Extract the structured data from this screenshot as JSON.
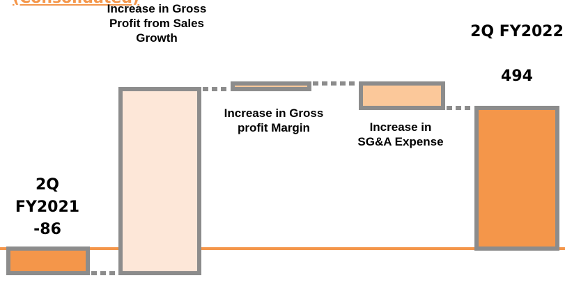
{
  "chart_data": {
    "type": "waterfall",
    "title": "(Consolidated)",
    "categories": [
      "2Q FY2021",
      "Increase in Gross Profit from Sales Growth",
      "Increase in Gross profit Margin",
      "Increase in SG&A Expense",
      "2Q FY2022"
    ],
    "values": [
      -86,
      646,
      20,
      -86,
      494
    ],
    "measure": [
      "absolute",
      "relative",
      "relative",
      "relative",
      "absolute"
    ],
    "colors": [
      "#f4964a",
      "#fde7d8",
      "#fbc89a",
      "#fbc89a",
      "#f4964a"
    ],
    "ylim": [
      -142,
      873
    ]
  }
}
